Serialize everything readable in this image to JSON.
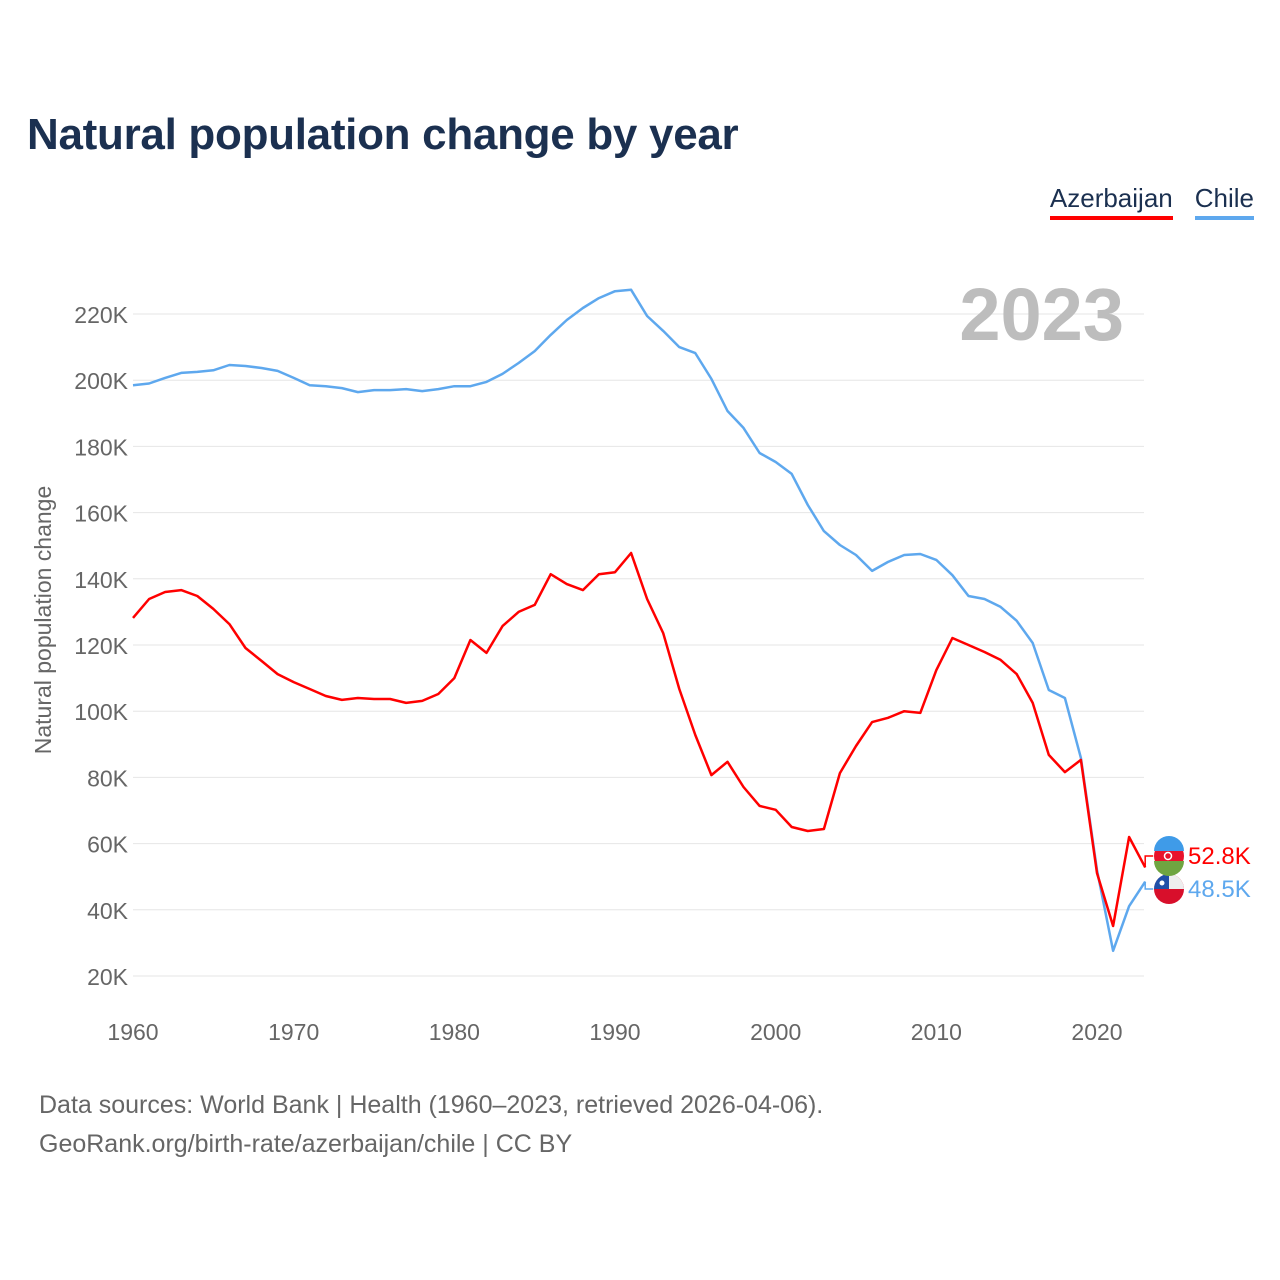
{
  "chart_data": {
    "type": "line",
    "title": "Natural population change by year",
    "ylabel": "Natural population change",
    "xlabel": "",
    "year_badge": "2023",
    "xlim": [
      1960,
      2023
    ],
    "ylim": [
      10000,
      240000
    ],
    "x_ticks": [
      1960,
      1970,
      1980,
      1990,
      2000,
      2010,
      2020
    ],
    "x_tick_labels": [
      "1960",
      "1970",
      "1980",
      "1990",
      "2000",
      "2010",
      "2020"
    ],
    "y_ticks": [
      20000,
      40000,
      60000,
      80000,
      100000,
      120000,
      140000,
      160000,
      180000,
      200000,
      220000
    ],
    "y_tick_labels": [
      "20K",
      "40K",
      "60K",
      "80K",
      "100K",
      "120K",
      "140K",
      "160K",
      "180K",
      "200K",
      "220K"
    ],
    "grid": true,
    "legend_position": "top-right",
    "start_year": 1960,
    "series": [
      {
        "name": "Azerbaijan",
        "color": "#ff0000",
        "end_label": "52.8K",
        "values": [
          128200,
          133900,
          136000,
          136600,
          134800,
          130900,
          126300,
          119100,
          115200,
          111200,
          108800,
          106700,
          104600,
          103400,
          104000,
          103700,
          103700,
          102500,
          103100,
          105200,
          110000,
          121500,
          117600,
          125700,
          130000,
          132100,
          141400,
          138400,
          136600,
          141400,
          142000,
          147800,
          133900,
          123600,
          106700,
          92800,
          80700,
          84700,
          77100,
          71400,
          70200,
          65000,
          63800,
          64400,
          81300,
          89500,
          96700,
          98000,
          100000,
          99500,
          112400,
          122100,
          120000,
          117900,
          115500,
          111200,
          102500,
          86800,
          81600,
          85300,
          51100,
          35100,
          62000,
          52800
        ]
      },
      {
        "name": "Chile",
        "color": "#5ea8ee",
        "end_label": "48.5K",
        "values": [
          198500,
          199000,
          200700,
          202200,
          202500,
          203000,
          204600,
          204300,
          203700,
          202800,
          200700,
          198500,
          198200,
          197600,
          196400,
          197000,
          197000,
          197300,
          196700,
          197300,
          198200,
          198200,
          199500,
          201900,
          205200,
          208800,
          213700,
          218200,
          221800,
          224800,
          226900,
          227300,
          219400,
          214900,
          210000,
          208200,
          200400,
          190700,
          185600,
          178000,
          175300,
          171700,
          162300,
          154400,
          150200,
          147200,
          142400,
          145100,
          147200,
          147500,
          145700,
          141100,
          134800,
          133900,
          131500,
          127300,
          120600,
          106400,
          104000,
          85900,
          52000,
          27600,
          41100,
          48500
        ]
      }
    ]
  },
  "footer": {
    "line1": "Data sources: World Bank | Health (1960–2023, retrieved 2026-04-06).",
    "line2": "GeoRank.org/birth-rate/azerbaijan/chile | CC BY"
  }
}
